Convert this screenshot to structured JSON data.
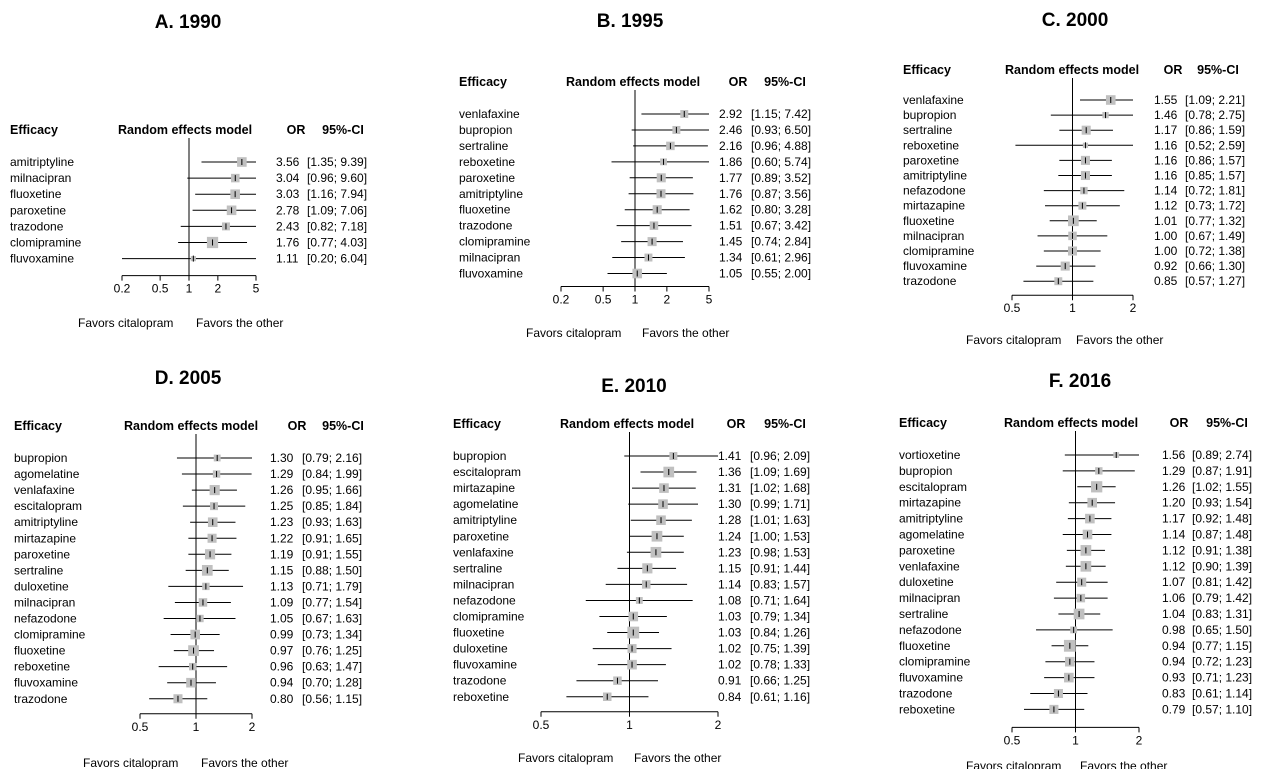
{
  "headers": {
    "label": "Efficacy",
    "model": "Random effects model",
    "or": "OR",
    "ci": "95%-CI"
  },
  "favors": {
    "left": "Favors citalopram",
    "right": "Favors the other"
  },
  "colors": {
    "box": "#c0c0c0",
    "line": "#000000"
  },
  "chart_data": [
    {
      "type": "forest",
      "title": "A. 1990",
      "xscale": "log",
      "xlim": [
        0.2,
        5
      ],
      "ticks": [
        0.2,
        0.5,
        1,
        2,
        5
      ],
      "tick_labels": [
        "0.2",
        "0.5",
        "1",
        "2",
        "5"
      ],
      "rows": [
        {
          "label": "amitriptyline",
          "or": 3.56,
          "lo": 1.35,
          "hi": 9.39,
          "or_text": "3.56",
          "ci_text": "[1.35; 9.39]",
          "weight": 0.6
        },
        {
          "label": "milnacipran",
          "or": 3.04,
          "lo": 0.96,
          "hi": 9.6,
          "or_text": "3.04",
          "ci_text": "[0.96; 9.60]",
          "weight": 0.5
        },
        {
          "label": "fluoxetine",
          "or": 3.03,
          "lo": 1.16,
          "hi": 7.94,
          "or_text": "3.03",
          "ci_text": "[1.16; 7.94]",
          "weight": 0.6
        },
        {
          "label": "paroxetine",
          "or": 2.78,
          "lo": 1.09,
          "hi": 7.06,
          "or_text": "2.78",
          "ci_text": "[1.09; 7.06]",
          "weight": 0.6
        },
        {
          "label": "trazodone",
          "or": 2.43,
          "lo": 0.82,
          "hi": 7.18,
          "or_text": "2.43",
          "ci_text": "[0.82; 7.18]",
          "weight": 0.45
        },
        {
          "label": "clomipramine",
          "or": 1.76,
          "lo": 0.77,
          "hi": 4.03,
          "or_text": "1.76",
          "ci_text": "[0.77; 4.03]",
          "weight": 0.75
        },
        {
          "label": "fluvoxamine",
          "or": 1.11,
          "lo": 0.2,
          "hi": 6.04,
          "or_text": "1.11",
          "ci_text": "[0.20; 6.04]",
          "weight": 0.2
        }
      ]
    },
    {
      "type": "forest",
      "title": "B. 1995",
      "xscale": "log",
      "xlim": [
        0.2,
        5
      ],
      "ticks": [
        0.2,
        0.5,
        1,
        2,
        5
      ],
      "tick_labels": [
        "0.2",
        "0.5",
        "1",
        "2",
        "5"
      ],
      "rows": [
        {
          "label": "venlafaxine",
          "or": 2.92,
          "lo": 1.15,
          "hi": 7.42,
          "or_text": "2.92",
          "ci_text": "[1.15; 7.42]",
          "weight": 0.45
        },
        {
          "label": "bupropion",
          "or": 2.46,
          "lo": 0.93,
          "hi": 6.5,
          "or_text": "2.46",
          "ci_text": "[0.93; 6.50]",
          "weight": 0.45
        },
        {
          "label": "sertraline",
          "or": 2.16,
          "lo": 0.96,
          "hi": 4.88,
          "or_text": "2.16",
          "ci_text": "[0.96; 4.88]",
          "weight": 0.5
        },
        {
          "label": "reboxetine",
          "or": 1.86,
          "lo": 0.6,
          "hi": 5.74,
          "or_text": "1.86",
          "ci_text": "[0.60; 5.74]",
          "weight": 0.35
        },
        {
          "label": "paroxetine",
          "or": 1.77,
          "lo": 0.89,
          "hi": 3.52,
          "or_text": "1.77",
          "ci_text": "[0.89; 3.52]",
          "weight": 0.55
        },
        {
          "label": "amitriptyline",
          "or": 1.76,
          "lo": 0.87,
          "hi": 3.56,
          "or_text": "1.76",
          "ci_text": "[0.87; 3.56]",
          "weight": 0.55
        },
        {
          "label": "fluoxetine",
          "or": 1.62,
          "lo": 0.8,
          "hi": 3.28,
          "or_text": "1.62",
          "ci_text": "[0.80; 3.28]",
          "weight": 0.55
        },
        {
          "label": "trazodone",
          "or": 1.51,
          "lo": 0.67,
          "hi": 3.42,
          "or_text": "1.51",
          "ci_text": "[0.67; 3.42]",
          "weight": 0.5
        },
        {
          "label": "clomipramine",
          "or": 1.45,
          "lo": 0.74,
          "hi": 2.84,
          "or_text": "1.45",
          "ci_text": "[0.74; 2.84]",
          "weight": 0.55
        },
        {
          "label": "milnacipran",
          "or": 1.34,
          "lo": 0.61,
          "hi": 2.96,
          "or_text": "1.34",
          "ci_text": "[0.61; 2.96]",
          "weight": 0.45
        },
        {
          "label": "fluvoxamine",
          "or": 1.05,
          "lo": 0.55,
          "hi": 2.0,
          "or_text": "1.05",
          "ci_text": "[0.55; 2.00]",
          "weight": 0.6
        }
      ]
    },
    {
      "type": "forest",
      "title": "C. 2000",
      "xscale": "log",
      "xlim": [
        0.5,
        2
      ],
      "ticks": [
        0.5,
        1,
        2
      ],
      "tick_labels": [
        "0.5",
        "1",
        "2"
      ],
      "rows": [
        {
          "label": "venlafaxine",
          "or": 1.55,
          "lo": 1.09,
          "hi": 2.21,
          "or_text": "1.55",
          "ci_text": "[1.09; 2.21]",
          "weight": 0.6
        },
        {
          "label": "bupropion",
          "or": 1.46,
          "lo": 0.78,
          "hi": 2.75,
          "or_text": "1.46",
          "ci_text": "[0.78; 2.75]",
          "weight": 0.3
        },
        {
          "label": "sertraline",
          "or": 1.17,
          "lo": 0.86,
          "hi": 1.59,
          "or_text": "1.17",
          "ci_text": "[0.86; 1.59]",
          "weight": 0.55
        },
        {
          "label": "reboxetine",
          "or": 1.16,
          "lo": 0.52,
          "hi": 2.59,
          "or_text": "1.16",
          "ci_text": "[0.52; 2.59]",
          "weight": 0.2
        },
        {
          "label": "paroxetine",
          "or": 1.16,
          "lo": 0.86,
          "hi": 1.57,
          "or_text": "1.16",
          "ci_text": "[0.86; 1.57]",
          "weight": 0.55
        },
        {
          "label": "amitriptyline",
          "or": 1.16,
          "lo": 0.85,
          "hi": 1.57,
          "or_text": "1.16",
          "ci_text": "[0.85; 1.57]",
          "weight": 0.55
        },
        {
          "label": "nefazodone",
          "or": 1.14,
          "lo": 0.72,
          "hi": 1.81,
          "or_text": "1.14",
          "ci_text": "[0.72; 1.81]",
          "weight": 0.4
        },
        {
          "label": "mirtazapine",
          "or": 1.12,
          "lo": 0.73,
          "hi": 1.72,
          "or_text": "1.12",
          "ci_text": "[0.73; 1.72]",
          "weight": 0.45
        },
        {
          "label": "fluoxetine",
          "or": 1.01,
          "lo": 0.77,
          "hi": 1.32,
          "or_text": "1.01",
          "ci_text": "[0.77; 1.32]",
          "weight": 0.7
        },
        {
          "label": "milnacipran",
          "or": 1.0,
          "lo": 0.67,
          "hi": 1.49,
          "or_text": "1.00",
          "ci_text": "[0.67; 1.49]",
          "weight": 0.5
        },
        {
          "label": "clomipramine",
          "or": 1.0,
          "lo": 0.72,
          "hi": 1.38,
          "or_text": "1.00",
          "ci_text": "[0.72; 1.38]",
          "weight": 0.55
        },
        {
          "label": "fluvoxamine",
          "or": 0.92,
          "lo": 0.66,
          "hi": 1.3,
          "or_text": "0.92",
          "ci_text": "[0.66; 1.30]",
          "weight": 0.55
        },
        {
          "label": "trazodone",
          "or": 0.85,
          "lo": 0.57,
          "hi": 1.27,
          "or_text": "0.85",
          "ci_text": "[0.57; 1.27]",
          "weight": 0.45
        }
      ]
    },
    {
      "type": "forest",
      "title": "D. 2005",
      "xscale": "log",
      "xlim": [
        0.5,
        2
      ],
      "ticks": [
        0.5,
        1,
        2
      ],
      "tick_labels": [
        "0.5",
        "1",
        "2"
      ],
      "rows": [
        {
          "label": "bupropion",
          "or": 1.3,
          "lo": 0.79,
          "hi": 2.16,
          "or_text": "1.30",
          "ci_text": "[0.79; 2.16]",
          "weight": 0.35
        },
        {
          "label": "agomelatine",
          "or": 1.29,
          "lo": 0.84,
          "hi": 1.99,
          "or_text": "1.29",
          "ci_text": "[0.84; 1.99]",
          "weight": 0.4
        },
        {
          "label": "venlafaxine",
          "or": 1.26,
          "lo": 0.95,
          "hi": 1.66,
          "or_text": "1.26",
          "ci_text": "[0.95; 1.66]",
          "weight": 0.65
        },
        {
          "label": "escitalopram",
          "or": 1.25,
          "lo": 0.85,
          "hi": 1.84,
          "or_text": "1.25",
          "ci_text": "[0.85; 1.84]",
          "weight": 0.45
        },
        {
          "label": "amitriptyline",
          "or": 1.23,
          "lo": 0.93,
          "hi": 1.63,
          "or_text": "1.23",
          "ci_text": "[0.93; 1.63]",
          "weight": 0.6
        },
        {
          "label": "mirtazapine",
          "or": 1.22,
          "lo": 0.91,
          "hi": 1.65,
          "or_text": "1.22",
          "ci_text": "[0.91; 1.65]",
          "weight": 0.55
        },
        {
          "label": "paroxetine",
          "or": 1.19,
          "lo": 0.91,
          "hi": 1.55,
          "or_text": "1.19",
          "ci_text": "[0.91; 1.55]",
          "weight": 0.65
        },
        {
          "label": "sertraline",
          "or": 1.15,
          "lo": 0.88,
          "hi": 1.5,
          "or_text": "1.15",
          "ci_text": "[0.88; 1.50]",
          "weight": 0.7
        },
        {
          "label": "duloxetine",
          "or": 1.13,
          "lo": 0.71,
          "hi": 1.79,
          "or_text": "1.13",
          "ci_text": "[0.71; 1.79]",
          "weight": 0.4
        },
        {
          "label": "milnacipran",
          "or": 1.09,
          "lo": 0.77,
          "hi": 1.54,
          "or_text": "1.09",
          "ci_text": "[0.77; 1.54]",
          "weight": 0.5
        },
        {
          "label": "nefazodone",
          "or": 1.05,
          "lo": 0.67,
          "hi": 1.63,
          "or_text": "1.05",
          "ci_text": "[0.67; 1.63]",
          "weight": 0.4
        },
        {
          "label": "clomipramine",
          "or": 0.99,
          "lo": 0.73,
          "hi": 1.34,
          "or_text": "0.99",
          "ci_text": "[0.73; 1.34]",
          "weight": 0.6
        },
        {
          "label": "fluoxetine",
          "or": 0.97,
          "lo": 0.76,
          "hi": 1.25,
          "or_text": "0.97",
          "ci_text": "[0.76; 1.25]",
          "weight": 0.7
        },
        {
          "label": "reboxetine",
          "or": 0.96,
          "lo": 0.63,
          "hi": 1.47,
          "or_text": "0.96",
          "ci_text": "[0.63; 1.47]",
          "weight": 0.4
        },
        {
          "label": "fluvoxamine",
          "or": 0.94,
          "lo": 0.7,
          "hi": 1.28,
          "or_text": "0.94",
          "ci_text": "[0.70; 1.28]",
          "weight": 0.6
        },
        {
          "label": "trazodone",
          "or": 0.8,
          "lo": 0.56,
          "hi": 1.15,
          "or_text": "0.80",
          "ci_text": "[0.56; 1.15]",
          "weight": 0.55
        }
      ]
    },
    {
      "type": "forest",
      "title": "E. 2010",
      "xscale": "log",
      "xlim": [
        0.5,
        2
      ],
      "ticks": [
        0.5,
        1,
        2
      ],
      "tick_labels": [
        "0.5",
        "1",
        "2"
      ],
      "rows": [
        {
          "label": "bupropion",
          "or": 1.41,
          "lo": 0.96,
          "hi": 2.09,
          "or_text": "1.41",
          "ci_text": "[0.96; 2.09]",
          "weight": 0.45
        },
        {
          "label": "escitalopram",
          "or": 1.36,
          "lo": 1.09,
          "hi": 1.69,
          "or_text": "1.36",
          "ci_text": "[1.09; 1.69]",
          "weight": 0.7
        },
        {
          "label": "mirtazapine",
          "or": 1.31,
          "lo": 1.02,
          "hi": 1.68,
          "or_text": "1.31",
          "ci_text": "[1.02; 1.68]",
          "weight": 0.6
        },
        {
          "label": "agomelatine",
          "or": 1.3,
          "lo": 0.99,
          "hi": 1.71,
          "or_text": "1.30",
          "ci_text": "[0.99; 1.71]",
          "weight": 0.6
        },
        {
          "label": "amitriptyline",
          "or": 1.28,
          "lo": 1.01,
          "hi": 1.63,
          "or_text": "1.28",
          "ci_text": "[1.01; 1.63]",
          "weight": 0.6
        },
        {
          "label": "paroxetine",
          "or": 1.24,
          "lo": 1.0,
          "hi": 1.53,
          "or_text": "1.24",
          "ci_text": "[1.00; 1.53]",
          "weight": 0.7
        },
        {
          "label": "venlafaxine",
          "or": 1.23,
          "lo": 0.98,
          "hi": 1.53,
          "or_text": "1.23",
          "ci_text": "[0.98; 1.53]",
          "weight": 0.7
        },
        {
          "label": "sertraline",
          "or": 1.15,
          "lo": 0.91,
          "hi": 1.44,
          "or_text": "1.15",
          "ci_text": "[0.91; 1.44]",
          "weight": 0.65
        },
        {
          "label": "milnacipran",
          "or": 1.14,
          "lo": 0.83,
          "hi": 1.57,
          "or_text": "1.14",
          "ci_text": "[0.83; 1.57]",
          "weight": 0.5
        },
        {
          "label": "nefazodone",
          "or": 1.08,
          "lo": 0.71,
          "hi": 1.64,
          "or_text": "1.08",
          "ci_text": "[0.71; 1.64]",
          "weight": 0.35
        },
        {
          "label": "clomipramine",
          "or": 1.03,
          "lo": 0.79,
          "hi": 1.34,
          "or_text": "1.03",
          "ci_text": "[0.79; 1.34]",
          "weight": 0.6
        },
        {
          "label": "fluoxetine",
          "or": 1.03,
          "lo": 0.84,
          "hi": 1.26,
          "or_text": "1.03",
          "ci_text": "[0.84; 1.26]",
          "weight": 0.8
        },
        {
          "label": "duloxetine",
          "or": 1.02,
          "lo": 0.75,
          "hi": 1.39,
          "or_text": "1.02",
          "ci_text": "[0.75; 1.39]",
          "weight": 0.55
        },
        {
          "label": "fluvoxamine",
          "or": 1.02,
          "lo": 0.78,
          "hi": 1.33,
          "or_text": "1.02",
          "ci_text": "[0.78; 1.33]",
          "weight": 0.6
        },
        {
          "label": "trazodone",
          "or": 0.91,
          "lo": 0.66,
          "hi": 1.25,
          "or_text": "0.91",
          "ci_text": "[0.66; 1.25]",
          "weight": 0.5
        },
        {
          "label": "reboxetine",
          "or": 0.84,
          "lo": 0.61,
          "hi": 1.16,
          "or_text": "0.84",
          "ci_text": "[0.61; 1.16]",
          "weight": 0.5
        }
      ]
    },
    {
      "type": "forest",
      "title": "F. 2016",
      "xscale": "log",
      "xlim": [
        0.5,
        2
      ],
      "ticks": [
        0.5,
        1,
        2
      ],
      "tick_labels": [
        "0.5",
        "1",
        "2"
      ],
      "rows": [
        {
          "label": "vortioxetine",
          "or": 1.56,
          "lo": 0.89,
          "hi": 2.74,
          "or_text": "1.56",
          "ci_text": "[0.89; 2.74]",
          "weight": 0.25
        },
        {
          "label": "bupropion",
          "or": 1.29,
          "lo": 0.87,
          "hi": 1.91,
          "or_text": "1.29",
          "ci_text": "[0.87; 1.91]",
          "weight": 0.4
        },
        {
          "label": "escitalopram",
          "or": 1.26,
          "lo": 1.02,
          "hi": 1.55,
          "or_text": "1.26",
          "ci_text": "[1.02; 1.55]",
          "weight": 0.75
        },
        {
          "label": "mirtazapine",
          "or": 1.2,
          "lo": 0.93,
          "hi": 1.54,
          "or_text": "1.20",
          "ci_text": "[0.93; 1.54]",
          "weight": 0.6
        },
        {
          "label": "amitriptyline",
          "or": 1.17,
          "lo": 0.92,
          "hi": 1.48,
          "or_text": "1.17",
          "ci_text": "[0.92; 1.48]",
          "weight": 0.6
        },
        {
          "label": "agomelatine",
          "or": 1.14,
          "lo": 0.87,
          "hi": 1.48,
          "or_text": "1.14",
          "ci_text": "[0.87; 1.48]",
          "weight": 0.6
        },
        {
          "label": "paroxetine",
          "or": 1.12,
          "lo": 0.91,
          "hi": 1.38,
          "or_text": "1.12",
          "ci_text": "[0.91; 1.38]",
          "weight": 0.7
        },
        {
          "label": "venlafaxine",
          "or": 1.12,
          "lo": 0.9,
          "hi": 1.39,
          "or_text": "1.12",
          "ci_text": "[0.90; 1.39]",
          "weight": 0.7
        },
        {
          "label": "duloxetine",
          "or": 1.07,
          "lo": 0.81,
          "hi": 1.42,
          "or_text": "1.07",
          "ci_text": "[0.81; 1.42]",
          "weight": 0.55
        },
        {
          "label": "milnacipran",
          "or": 1.06,
          "lo": 0.79,
          "hi": 1.42,
          "or_text": "1.06",
          "ci_text": "[0.79; 1.42]",
          "weight": 0.5
        },
        {
          "label": "sertraline",
          "or": 1.04,
          "lo": 0.83,
          "hi": 1.31,
          "or_text": "1.04",
          "ci_text": "[0.83; 1.31]",
          "weight": 0.7
        },
        {
          "label": "nefazodone",
          "or": 0.98,
          "lo": 0.65,
          "hi": 1.5,
          "or_text": "0.98",
          "ci_text": "[0.65; 1.50]",
          "weight": 0.35
        },
        {
          "label": "fluoxetine",
          "or": 0.94,
          "lo": 0.77,
          "hi": 1.15,
          "or_text": "0.94",
          "ci_text": "[0.77; 1.15]",
          "weight": 0.8
        },
        {
          "label": "clomipramine",
          "or": 0.94,
          "lo": 0.72,
          "hi": 1.23,
          "or_text": "0.94",
          "ci_text": "[0.72; 1.23]",
          "weight": 0.6
        },
        {
          "label": "fluvoxamine",
          "or": 0.93,
          "lo": 0.71,
          "hi": 1.23,
          "or_text": "0.93",
          "ci_text": "[0.71; 1.23]",
          "weight": 0.6
        },
        {
          "label": "trazodone",
          "or": 0.83,
          "lo": 0.61,
          "hi": 1.14,
          "or_text": "0.83",
          "ci_text": "[0.61; 1.14]",
          "weight": 0.55
        },
        {
          "label": "reboxetine",
          "or": 0.79,
          "lo": 0.57,
          "hi": 1.1,
          "or_text": "0.79",
          "ci_text": "[0.57; 1.10]",
          "weight": 0.55
        }
      ]
    }
  ]
}
